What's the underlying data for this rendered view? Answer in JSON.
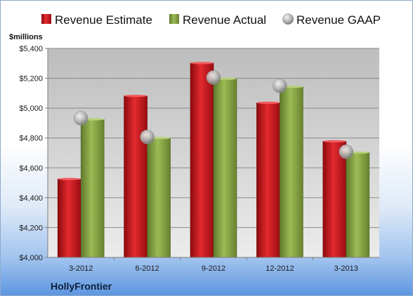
{
  "chart_data": {
    "type": "bar",
    "categories": [
      "3-2012",
      "6-2012",
      "9-2012",
      "12-2012",
      "3-2013"
    ],
    "series": [
      {
        "name": "Revenue Estimate",
        "kind": "bar",
        "values": [
          4525,
          5082,
          5302,
          5036,
          4778
        ]
      },
      {
        "name": "Revenue Actual",
        "kind": "bar",
        "values": [
          4925,
          4800,
          5197,
          5143,
          4702
        ]
      },
      {
        "name": "Revenue GAAP",
        "kind": "marker",
        "values": [
          4932,
          4807,
          5205,
          5150,
          4708
        ]
      }
    ],
    "ylabel": "$millions",
    "ylim": [
      4000,
      5400
    ],
    "yticks": [
      4000,
      4200,
      4400,
      4600,
      4800,
      5000,
      5200,
      5400
    ],
    "ytick_labels": [
      "$4,000",
      "$4,200",
      "$4,400",
      "$4,600",
      "$4,800",
      "$5,000",
      "$5,200",
      "$5,400"
    ],
    "grid": true,
    "legend": "top",
    "company": "HollyFrontier",
    "colors": {
      "estimate": "#c8151c",
      "actual": "#86a443",
      "gaap": "#b9b9b9",
      "plot_top": "#bdbdbd",
      "plot_bottom": "#e9e9e9"
    }
  }
}
